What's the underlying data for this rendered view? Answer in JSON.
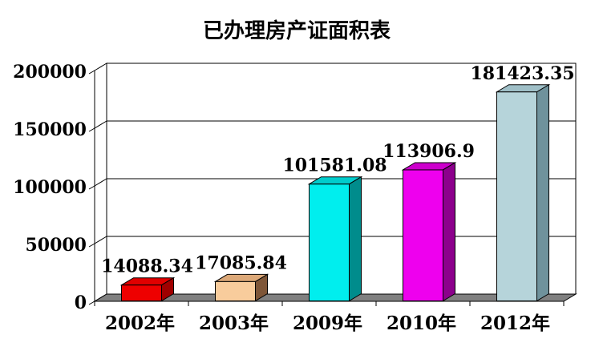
{
  "title": "已办理房产证面积表",
  "chart_data": {
    "type": "bar",
    "variant": "3d-column",
    "title": "已办理房产证面积表",
    "categories": [
      "2002年",
      "2003年",
      "2009年",
      "2010年",
      "2012年"
    ],
    "values": [
      14088.34,
      17085.84,
      101581.08,
      113906.9,
      181423.35
    ],
    "value_labels": [
      "14088.34",
      "17085.84",
      "101581.08",
      "113906.9",
      "181423.35"
    ],
    "bar_colors": [
      {
        "front": "#EE0000",
        "top": "#E00000",
        "side": "#A00000"
      },
      {
        "front": "#F8CC9C",
        "top": "#DCA878",
        "side": "#7E5638"
      },
      {
        "front": "#00EEEE",
        "top": "#00CCCC",
        "side": "#008C8C"
      },
      {
        "front": "#EE00EE",
        "top": "#CC00CC",
        "side": "#8C008C"
      },
      {
        "front": "#B6D4DA",
        "top": "#9FBFC7",
        "side": "#6F929C"
      }
    ],
    "xlabel": "",
    "ylabel": "",
    "ylim": [
      0,
      200000
    ],
    "yticks": [
      0,
      50000,
      100000,
      150000,
      200000
    ],
    "ytick_labels": [
      "0",
      "50000",
      "100000",
      "150000",
      "200000"
    ],
    "grid": true,
    "legend": "none",
    "colors": {
      "wall": "#FFFFFF",
      "floor": "#808080",
      "axis": "#000000",
      "text": "#000000",
      "background": "#FFFFFF"
    }
  }
}
